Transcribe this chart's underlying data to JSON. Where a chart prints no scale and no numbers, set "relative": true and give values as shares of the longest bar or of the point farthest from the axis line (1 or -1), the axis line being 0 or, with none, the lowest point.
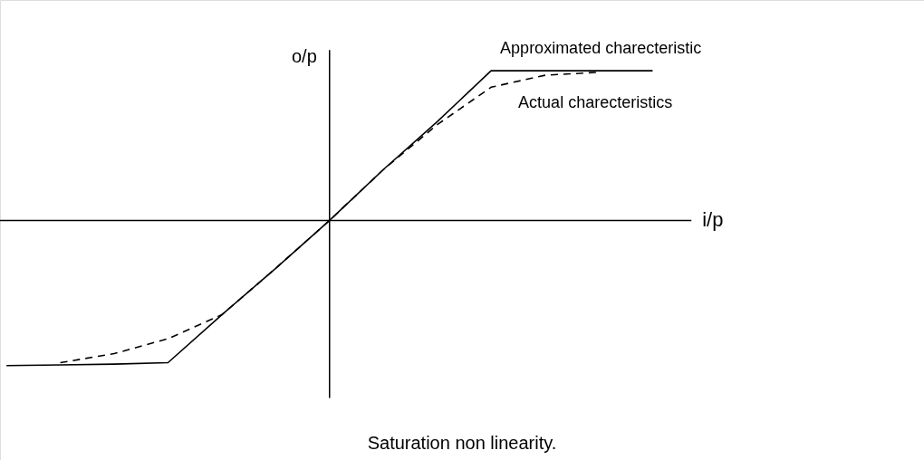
{
  "chart_data": {
    "type": "line",
    "relative": true,
    "xlabel": "i/p",
    "ylabel": "o/p",
    "annotations": [
      "Saturation non linearity."
    ],
    "categories": [
      null,
      null,
      null,
      null,
      null,
      null,
      null,
      null,
      null,
      null,
      null,
      null,
      null
    ],
    "series": [
      {
        "name": "Approximated charecteristic",
        "color": "#000000",
        "line_style": "solid",
        "values": [
          -0.97,
          -0.965,
          -0.96,
          -0.95,
          -0.63,
          -0.32,
          0,
          0.34,
          0.66,
          1,
          1,
          1,
          1
        ]
      },
      {
        "name": "Actual charecteristics",
        "color": "#000000",
        "line_style": "dashed",
        "values": [
          null,
          -0.95,
          -0.89,
          -0.79,
          -0.63,
          -0.32,
          0,
          0.34,
          0.64,
          0.89,
          0.97,
          0.99,
          null
        ]
      }
    ]
  }
}
